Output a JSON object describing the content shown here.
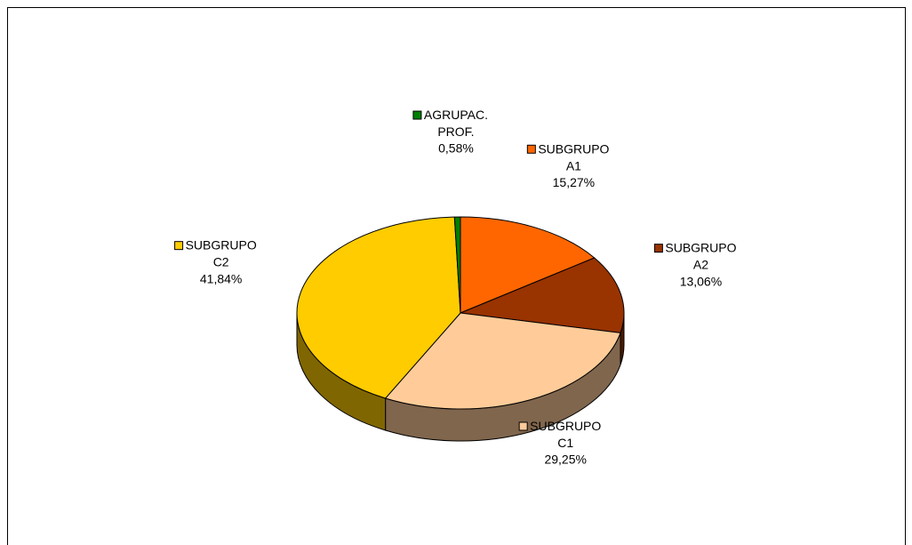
{
  "chart_data": {
    "type": "pie",
    "categories": [
      "SUBGRUPO A1",
      "SUBGRUPO A2",
      "SUBGRUPO C1",
      "SUBGRUPO C2",
      "AGRUPAC. PROF."
    ],
    "values": [
      15.27,
      13.06,
      29.25,
      41.84,
      0.58
    ],
    "value_labels": [
      "15,27%",
      "13,06%",
      "29,25%",
      "41,84%",
      "0,58%"
    ],
    "colors": [
      "#ff6600",
      "#993300",
      "#ffcc99",
      "#ffcc00",
      "#008000"
    ]
  }
}
